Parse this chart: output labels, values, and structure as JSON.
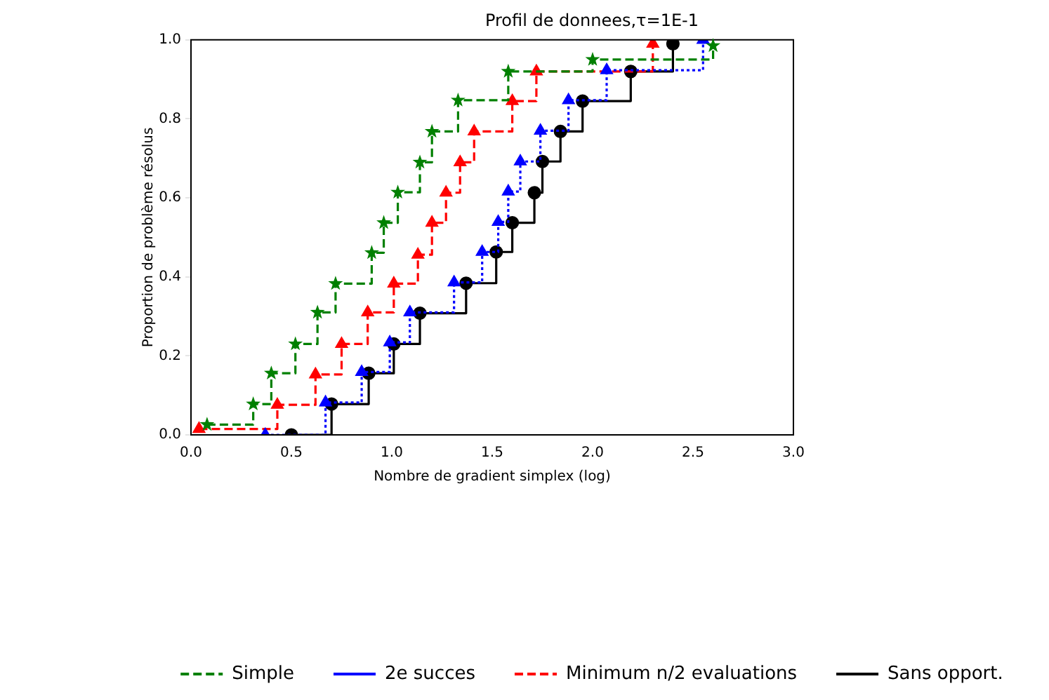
{
  "chart_data": {
    "type": "step",
    "title": "Profil de donnees,τ=1E-1",
    "xlabel": "Nombre de gradient simplex (log)",
    "ylabel": "Proportion de problème résolus",
    "xlim": [
      0,
      3
    ],
    "ylim": [
      0,
      1
    ],
    "xticks": [
      {
        "value": 0,
        "label": "0.0"
      },
      {
        "value": 0.5,
        "label": "0.5"
      },
      {
        "value": 1,
        "label": "1.0"
      },
      {
        "value": 1.5,
        "label": "1.5"
      },
      {
        "value": 2,
        "label": "2.0"
      },
      {
        "value": 2.5,
        "label": "2.5"
      },
      {
        "value": 3,
        "label": "3.0"
      }
    ],
    "yticks": [
      {
        "value": 0,
        "label": "0.0"
      },
      {
        "value": 0.2,
        "label": "0.2"
      },
      {
        "value": 0.4,
        "label": "0.4"
      },
      {
        "value": 0.6,
        "label": "0.6"
      },
      {
        "value": 0.8,
        "label": "0.8"
      },
      {
        "value": 1,
        "label": "1.0"
      }
    ],
    "grid": false,
    "legend": "bottom",
    "series": [
      {
        "name": "Simple",
        "color": "#008000",
        "marker": "star",
        "line_style": "dashed",
        "x": [
          0.08,
          0.31,
          0.4,
          0.52,
          0.63,
          0.72,
          0.9,
          0.96,
          1.03,
          1.14,
          1.2,
          1.33,
          1.58,
          2.0,
          2.6
        ],
        "values": [
          0.026,
          0.078,
          0.156,
          0.23,
          0.31,
          0.383,
          0.461,
          0.537,
          0.614,
          0.69,
          0.768,
          0.847,
          0.92,
          0.95,
          0.985
        ]
      },
      {
        "name": "2e succes",
        "color": "#0000ff",
        "marker": "triangle",
        "line_style": "dotted",
        "x": [
          0.37,
          0.67,
          0.85,
          0.99,
          1.09,
          1.31,
          1.45,
          1.53,
          1.58,
          1.64,
          1.74,
          1.88,
          2.07,
          2.55
        ],
        "values": [
          0.0,
          0.082,
          0.159,
          0.234,
          0.31,
          0.386,
          0.463,
          0.539,
          0.616,
          0.692,
          0.77,
          0.847,
          0.923,
          1.0
        ]
      },
      {
        "name": "Minimum n/2 evaluations",
        "color": "#ff0000",
        "marker": "triangle",
        "line_style": "dashed",
        "x": [
          0.04,
          0.43,
          0.62,
          0.75,
          0.88,
          1.01,
          1.13,
          1.2,
          1.27,
          1.34,
          1.41,
          1.6,
          1.72,
          2.3
        ],
        "values": [
          0.015,
          0.076,
          0.153,
          0.23,
          0.31,
          0.383,
          0.456,
          0.537,
          0.613,
          0.69,
          0.768,
          0.845,
          0.92,
          0.99
        ]
      },
      {
        "name": "Sans opport.",
        "color": "#000000",
        "marker": "circle",
        "line_style": "solid",
        "x": [
          0.5,
          0.7,
          0.885,
          1.01,
          1.14,
          1.37,
          1.52,
          1.6,
          1.71,
          1.75,
          1.84,
          1.95,
          2.19,
          2.4
        ],
        "values": [
          0.0,
          0.078,
          0.156,
          0.23,
          0.308,
          0.384,
          0.463,
          0.537,
          0.613,
          0.692,
          0.768,
          0.845,
          0.92,
          0.99
        ]
      }
    ]
  }
}
